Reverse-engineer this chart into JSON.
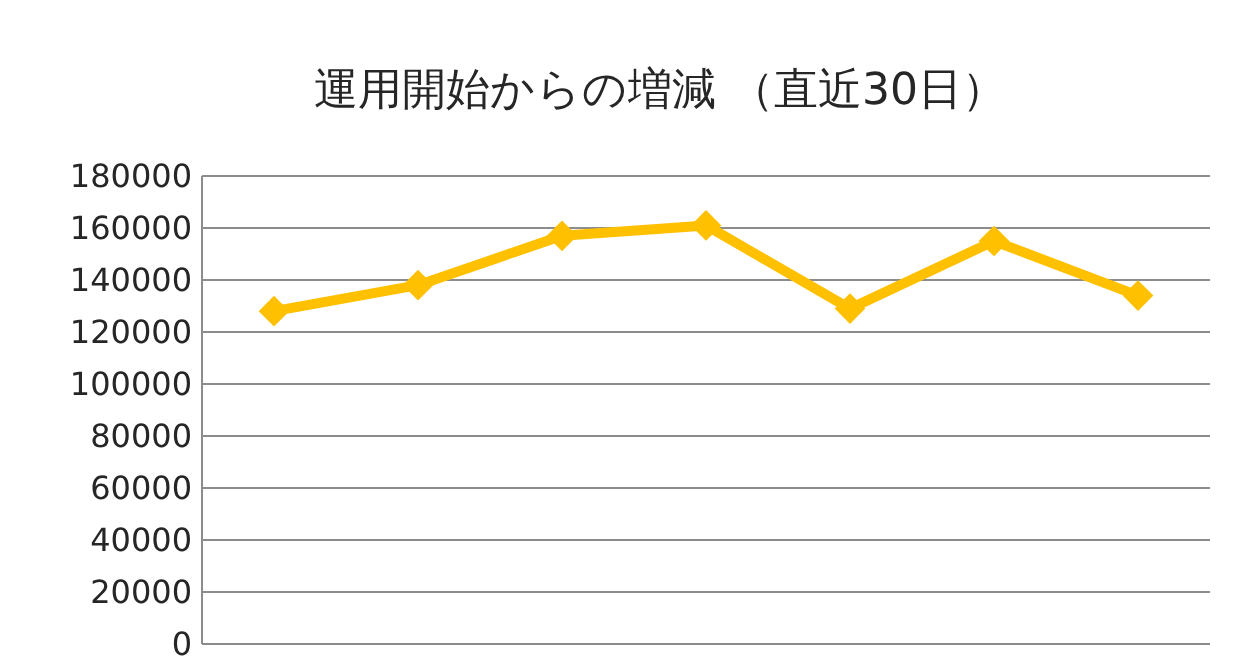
{
  "chart_data": {
    "type": "line",
    "title": "運用開始からの増減 （直近30日）",
    "categories": [
      null,
      null,
      null,
      null,
      null,
      null,
      null
    ],
    "series": [
      {
        "color": "#ffc000",
        "values": [
          128000,
          138000,
          157000,
          161000,
          129000,
          155000,
          134000
        ]
      }
    ],
    "ylim": [
      0,
      180000
    ],
    "yticks": [
      0,
      20000,
      40000,
      60000,
      80000,
      100000,
      120000,
      140000,
      160000,
      180000
    ],
    "grid": "y",
    "marker": "diamond",
    "line_style": "solid"
  }
}
